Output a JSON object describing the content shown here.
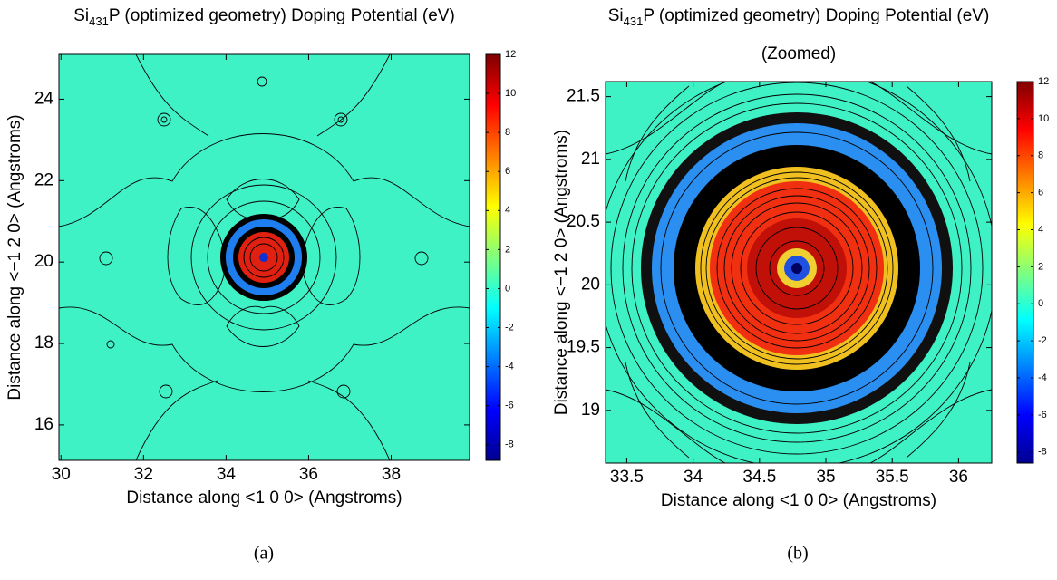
{
  "chart_data": [
    {
      "type": "contour",
      "title_parts": [
        "Si",
        "431",
        "P (optimized geometry) Doping Potential (eV)"
      ],
      "xlabel": "Distance along <1 0 0> (Angstroms)",
      "ylabel": "Distance along <−1 2 0> (Angstroms)",
      "xlim": [
        29.95,
        39.9
      ],
      "xticks": [
        30,
        32,
        34,
        36,
        38
      ],
      "ylim": [
        15.13,
        25.1
      ],
      "yticks": [
        16,
        18,
        20,
        22,
        24
      ],
      "colorbar": {
        "lim": [
          -8.8,
          12
        ],
        "ticks": [
          -8,
          -6,
          -4,
          -2,
          0,
          2,
          4,
          6,
          8,
          10,
          12
        ]
      },
      "caption": "(a)"
    },
    {
      "type": "contour",
      "title_parts": [
        "Si",
        "431",
        "P (optimized geometry) Doping Potential (eV)"
      ],
      "subtitle": "(Zoomed)",
      "xlabel": "Distance along <1 0 0> (Angstroms)",
      "ylabel": "Distance along <−1 2 0> (Angstroms)",
      "xlim": [
        33.34,
        36.25
      ],
      "xticks": [
        33.5,
        34,
        34.5,
        35,
        35.5,
        36
      ],
      "ylim": [
        18.58,
        21.62
      ],
      "yticks": [
        19,
        19.5,
        20,
        20.5,
        21,
        21.5
      ],
      "colorbar": {
        "lim": [
          -8.6,
          12
        ],
        "ticks": [
          -8,
          -6,
          -4,
          -2,
          0,
          2,
          4,
          6,
          8,
          10,
          12
        ]
      },
      "caption": "(b)"
    }
  ]
}
